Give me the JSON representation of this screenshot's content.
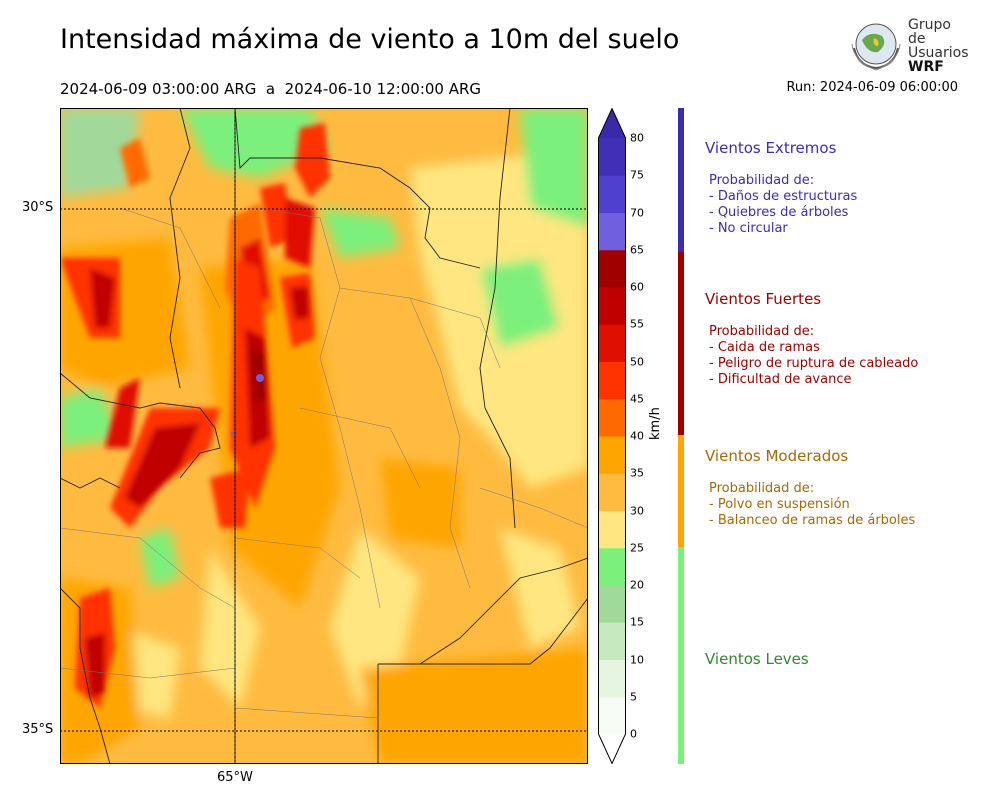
{
  "header": {
    "title": "Intensidad máxima de viento a 10m del suelo",
    "period": "2024-06-09 03:00:00 ARG  a  2024-06-10 12:00:00 ARG",
    "run": "Run: 2024-06-09 06:00:00"
  },
  "logo": {
    "line1": "Grupo de",
    "line2": "Usuarios",
    "line3": "WRF"
  },
  "axes": {
    "lat_labels": [
      "30°S",
      "35°S"
    ],
    "lon_labels": [
      "65°W"
    ]
  },
  "colorbar": {
    "unit": "km/h",
    "ticks": [
      "0",
      "5",
      "10",
      "15",
      "20",
      "25",
      "30",
      "35",
      "40",
      "45",
      "50",
      "55",
      "60",
      "65",
      "70",
      "75",
      "80"
    ],
    "colors": [
      "#f7fcf5",
      "#e5f5e0",
      "#c7e9c0",
      "#a1d99b",
      "#7bf07b",
      "#ffe680",
      "#ffbb40",
      "#ffa500",
      "#ff6a00",
      "#ff3300",
      "#e01000",
      "#c00000",
      "#a00000",
      "#7060e0",
      "#5040d0",
      "#4030b8"
    ],
    "under_color": "#ffffff",
    "over_color": "#3a2aa8"
  },
  "legend": [
    {
      "name": "Vientos Extremos",
      "prob_label": "Probabilidad de:",
      "items": [
        "- Daños de estructuras",
        "- Quiebres de árboles",
        "- No circular"
      ],
      "color": "#3c2db0"
    },
    {
      "name": "Vientos Fuertes",
      "prob_label": "Probabilidad de:",
      "items": [
        "- Caida de ramas",
        "- Peligro de ruptura de cableado",
        "- Dificultad de avance"
      ],
      "color": "#9b0000"
    },
    {
      "name": "Vientos Moderados",
      "prob_label": "Probabilidad de:",
      "items": [
        "- Polvo en suspensión",
        "- Balanceo de ramas de árboles"
      ],
      "color": "#a86a00"
    },
    {
      "name": "Vientos Leves",
      "prob_label": "",
      "items": [],
      "color": "#2e8b2e"
    }
  ],
  "bar_colors": {
    "extremos": "#3c2db0",
    "fuertes": "#a00000",
    "moderados": "#ffa500",
    "leves": "#7bf07b"
  }
}
